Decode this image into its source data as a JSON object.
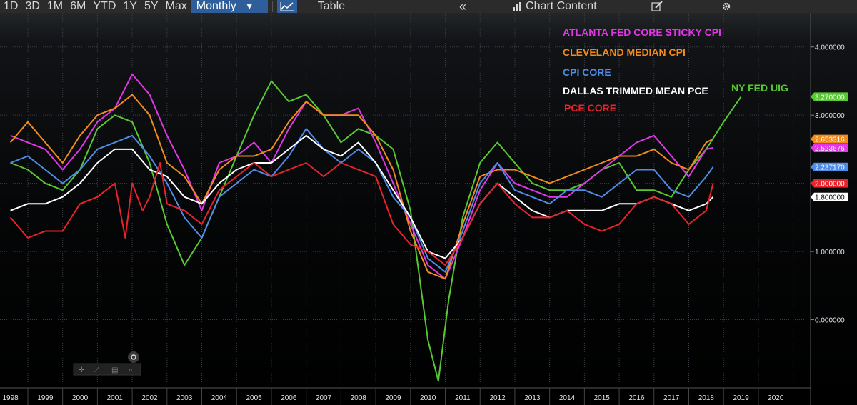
{
  "toolbar": {
    "periods": [
      "1D",
      "3D",
      "1M",
      "6M",
      "YTD",
      "1Y",
      "5Y",
      "Max"
    ],
    "frequency": "Monthly",
    "frequency_arrow": "▼",
    "chart_icon": "line-chart-icon",
    "table_label": "Table",
    "collapse_icon": "double-chevron-left-icon",
    "collapse_glyph": "«",
    "chart_content_icon": "chart-content-icon",
    "chart_content_label": "Chart Content",
    "edit_icon": "edit-icon",
    "settings_icon": "gear-icon"
  },
  "tools": [
    "crosshair-icon",
    "draw-icon",
    "annotate-icon",
    "zoom-icon"
  ],
  "chart_data": {
    "type": "line",
    "ylim": [
      -1.0,
      4.5
    ],
    "yticks": [
      0,
      1,
      2,
      3,
      4
    ],
    "ytick_labels": [
      "0.000000",
      "1.000000",
      "2.000000",
      "3.000000",
      "4.000000"
    ],
    "xlim": [
      1997.7,
      2021.0
    ],
    "xticks": [
      1998,
      1999,
      2000,
      2001,
      2002,
      2003,
      2004,
      2005,
      2006,
      2007,
      2008,
      2009,
      2010,
      2011,
      2012,
      2013,
      2014,
      2015,
      2016,
      2017,
      2018,
      2019,
      2020
    ],
    "grid": true,
    "legend_position": "top-right",
    "series": [
      {
        "name": "ATLANTA FED CORE STICKY CPI",
        "color": "#e236e8",
        "last": "2.523676",
        "x": [
          1998.0,
          1998.5,
          1999.0,
          1999.5,
          2000.0,
          2000.5,
          2001.0,
          2001.5,
          2002.0,
          2002.5,
          2003.0,
          2003.5,
          2004.0,
          2004.5,
          2005.0,
          2005.5,
          2006.0,
          2006.5,
          2007.0,
          2007.5,
          2008.0,
          2008.5,
          2009.0,
          2009.5,
          2010.0,
          2010.5,
          2011.0,
          2011.5,
          2012.0,
          2012.5,
          2013.0,
          2013.5,
          2014.0,
          2014.5,
          2015.0,
          2015.5,
          2016.0,
          2016.5,
          2017.0,
          2017.5,
          2018.0,
          2018.2
        ],
        "y": [
          2.7,
          2.6,
          2.5,
          2.2,
          2.5,
          2.9,
          3.1,
          3.6,
          3.3,
          2.7,
          2.2,
          1.6,
          2.3,
          2.4,
          2.6,
          2.3,
          2.8,
          3.2,
          3.0,
          3.0,
          3.1,
          2.6,
          2.0,
          1.4,
          0.8,
          0.6,
          1.2,
          1.9,
          2.3,
          2.0,
          1.9,
          1.8,
          1.8,
          2.0,
          2.2,
          2.4,
          2.6,
          2.7,
          2.4,
          2.1,
          2.5,
          2.52
        ]
      },
      {
        "name": "CLEVELAND MEDIAN CPI",
        "color": "#f38b1c",
        "last": "2.653316",
        "x": [
          1998.0,
          1998.5,
          1999.0,
          1999.5,
          2000.0,
          2000.5,
          2001.0,
          2001.5,
          2002.0,
          2002.5,
          2003.0,
          2003.5,
          2004.0,
          2004.5,
          2005.0,
          2005.5,
          2006.0,
          2006.5,
          2007.0,
          2007.5,
          2008.0,
          2008.5,
          2009.0,
          2009.5,
          2010.0,
          2010.5,
          2011.0,
          2011.5,
          2012.0,
          2012.5,
          2013.0,
          2013.5,
          2014.0,
          2014.5,
          2015.0,
          2015.5,
          2016.0,
          2016.5,
          2017.0,
          2017.5,
          2018.0,
          2018.2
        ],
        "y": [
          2.6,
          2.9,
          2.6,
          2.3,
          2.7,
          3.0,
          3.1,
          3.3,
          3.0,
          2.3,
          2.1,
          1.7,
          2.2,
          2.4,
          2.4,
          2.5,
          2.9,
          3.2,
          3.0,
          3.0,
          3.0,
          2.7,
          2.2,
          1.3,
          0.7,
          0.6,
          1.4,
          2.1,
          2.2,
          2.2,
          2.1,
          2.0,
          2.1,
          2.2,
          2.3,
          2.4,
          2.4,
          2.5,
          2.3,
          2.2,
          2.6,
          2.65
        ]
      },
      {
        "name": "CPI CORE",
        "color": "#4f8ce8",
        "last": "2.237170",
        "x": [
          1998.0,
          1998.5,
          1999.0,
          1999.5,
          2000.0,
          2000.5,
          2001.0,
          2001.5,
          2002.0,
          2002.5,
          2003.0,
          2003.5,
          2004.0,
          2004.5,
          2005.0,
          2005.5,
          2006.0,
          2006.5,
          2007.0,
          2007.5,
          2008.0,
          2008.5,
          2009.0,
          2009.5,
          2010.0,
          2010.5,
          2011.0,
          2011.5,
          2012.0,
          2012.5,
          2013.0,
          2013.5,
          2014.0,
          2014.5,
          2015.0,
          2015.5,
          2016.0,
          2016.5,
          2017.0,
          2017.5,
          2018.0,
          2018.2
        ],
        "y": [
          2.3,
          2.4,
          2.2,
          2.0,
          2.2,
          2.5,
          2.6,
          2.7,
          2.4,
          2.0,
          1.5,
          1.2,
          1.8,
          2.0,
          2.2,
          2.1,
          2.4,
          2.8,
          2.5,
          2.3,
          2.5,
          2.3,
          1.8,
          1.5,
          0.9,
          0.7,
          1.3,
          2.0,
          2.3,
          1.9,
          1.8,
          1.7,
          1.9,
          1.9,
          1.8,
          2.0,
          2.2,
          2.2,
          1.9,
          1.8,
          2.1,
          2.24
        ]
      },
      {
        "name": "DALLAS TRIMMED MEAN PCE",
        "color": "#ffffff",
        "last": "1.800000",
        "x": [
          1998.0,
          1998.5,
          1999.0,
          1999.5,
          2000.0,
          2000.5,
          2001.0,
          2001.5,
          2002.0,
          2002.5,
          2003.0,
          2003.5,
          2004.0,
          2004.5,
          2005.0,
          2005.5,
          2006.0,
          2006.5,
          2007.0,
          2007.5,
          2008.0,
          2008.5,
          2009.0,
          2009.5,
          2010.0,
          2010.5,
          2011.0,
          2011.5,
          2012.0,
          2012.5,
          2013.0,
          2013.5,
          2014.0,
          2014.5,
          2015.0,
          2015.5,
          2016.0,
          2016.5,
          2017.0,
          2017.5,
          2018.0,
          2018.2
        ],
        "y": [
          1.6,
          1.7,
          1.7,
          1.8,
          2.0,
          2.3,
          2.5,
          2.5,
          2.2,
          2.1,
          1.8,
          1.7,
          2.0,
          2.2,
          2.3,
          2.3,
          2.5,
          2.7,
          2.5,
          2.4,
          2.6,
          2.3,
          1.9,
          1.5,
          1.0,
          0.9,
          1.2,
          1.7,
          2.0,
          1.8,
          1.6,
          1.5,
          1.6,
          1.6,
          1.6,
          1.7,
          1.7,
          1.8,
          1.7,
          1.6,
          1.7,
          1.8
        ]
      },
      {
        "name": "PCE CORE",
        "color": "#e8232c",
        "last": "2.000000",
        "x": [
          1998.0,
          1998.5,
          1999.0,
          1999.5,
          2000.0,
          2000.5,
          2001.0,
          2001.3,
          2001.5,
          2001.8,
          2002.0,
          2002.3,
          2002.5,
          2003.0,
          2003.5,
          2004.0,
          2004.5,
          2005.0,
          2005.5,
          2006.0,
          2006.5,
          2007.0,
          2007.5,
          2008.0,
          2008.5,
          2009.0,
          2009.5,
          2010.0,
          2010.5,
          2011.0,
          2011.5,
          2012.0,
          2012.5,
          2013.0,
          2013.5,
          2014.0,
          2014.5,
          2015.0,
          2015.5,
          2016.0,
          2016.5,
          2017.0,
          2017.5,
          2018.0,
          2018.2
        ],
        "y": [
          1.5,
          1.2,
          1.3,
          1.3,
          1.7,
          1.8,
          2.0,
          1.2,
          2.0,
          1.6,
          1.8,
          2.3,
          1.7,
          1.6,
          1.4,
          1.9,
          2.1,
          2.3,
          2.1,
          2.2,
          2.3,
          2.1,
          2.3,
          2.2,
          2.1,
          1.4,
          1.1,
          1.0,
          0.8,
          1.2,
          1.7,
          2.0,
          1.7,
          1.5,
          1.5,
          1.6,
          1.4,
          1.3,
          1.4,
          1.7,
          1.8,
          1.7,
          1.4,
          1.6,
          2.0
        ]
      },
      {
        "name": "NY FED UIG",
        "color": "#58c832",
        "last": "3.270000",
        "x": [
          1998.0,
          1998.5,
          1999.0,
          1999.5,
          2000.0,
          2000.5,
          2001.0,
          2001.5,
          2002.0,
          2002.5,
          2003.0,
          2003.5,
          2004.0,
          2004.5,
          2005.0,
          2005.5,
          2006.0,
          2006.5,
          2007.0,
          2007.5,
          2008.0,
          2008.5,
          2009.0,
          2009.5,
          2010.0,
          2010.3,
          2010.6,
          2011.0,
          2011.5,
          2012.0,
          2012.5,
          2013.0,
          2013.5,
          2014.0,
          2014.5,
          2015.0,
          2015.5,
          2016.0,
          2016.5,
          2017.0,
          2017.5,
          2018.0,
          2018.5,
          2019.0
        ],
        "y": [
          2.3,
          2.2,
          2.0,
          1.9,
          2.2,
          2.8,
          3.0,
          2.9,
          2.3,
          1.4,
          0.8,
          1.2,
          1.8,
          2.4,
          3.0,
          3.5,
          3.2,
          3.3,
          3.0,
          2.6,
          2.8,
          2.7,
          2.5,
          1.6,
          -0.3,
          -0.9,
          0.3,
          1.5,
          2.3,
          2.6,
          2.3,
          2.0,
          1.9,
          1.9,
          2.0,
          2.2,
          2.3,
          1.9,
          1.9,
          1.8,
          2.2,
          2.5,
          2.9,
          3.27
        ]
      }
    ]
  }
}
